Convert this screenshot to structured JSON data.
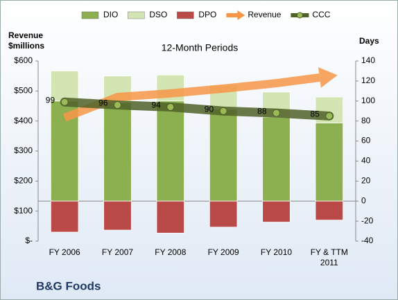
{
  "chart_data": {
    "type": "bar",
    "title": "12-Month Periods",
    "ylabel_lines": [
      "Revenue",
      "$millions"
    ],
    "y2label": "Days",
    "footer": "B&G Foods",
    "categories": [
      "FY 2006",
      "FY 2007",
      "FY 2008",
      "FY 2009",
      "FY 2010",
      "FY & TTM 2011"
    ],
    "ylim": [
      0,
      600
    ],
    "yticks": [
      {
        "value": 0,
        "label": "$-"
      },
      {
        "value": 100,
        "label": "$100"
      },
      {
        "value": 200,
        "label": "$200"
      },
      {
        "value": 300,
        "label": "$300"
      },
      {
        "value": 400,
        "label": "$400"
      },
      {
        "value": 500,
        "label": "$500"
      },
      {
        "value": 600,
        "label": "$600"
      }
    ],
    "y2lim": [
      -40,
      140
    ],
    "y2ticks": [
      -40,
      -20,
      0,
      20,
      40,
      60,
      80,
      100,
      120,
      140
    ],
    "series": [
      {
        "name": "DIO",
        "type": "bar",
        "axis": "y2",
        "stack": "pos",
        "color": "#8cb04f",
        "values": [
          100,
          98,
          100,
          92,
          84,
          78
        ]
      },
      {
        "name": "DSO",
        "type": "bar",
        "axis": "y2",
        "stack": "pos",
        "color": "#d4e5b4",
        "values": [
          30,
          27,
          26,
          24,
          25,
          26
        ]
      },
      {
        "name": "DPO",
        "type": "bar",
        "axis": "y2",
        "stack": "neg",
        "color": "#b94a48",
        "values": [
          -31,
          -29,
          -32,
          -26,
          -21,
          -19
        ]
      },
      {
        "name": "Revenue",
        "type": "arrow",
        "axis": "y",
        "color": "#f79646",
        "values": [
          411,
          480,
          492,
          508,
          526,
          549
        ]
      },
      {
        "name": "CCC",
        "type": "line",
        "axis": "y2",
        "color": "#4f6228",
        "values": [
          99,
          96,
          94,
          90,
          88,
          85
        ]
      }
    ]
  }
}
